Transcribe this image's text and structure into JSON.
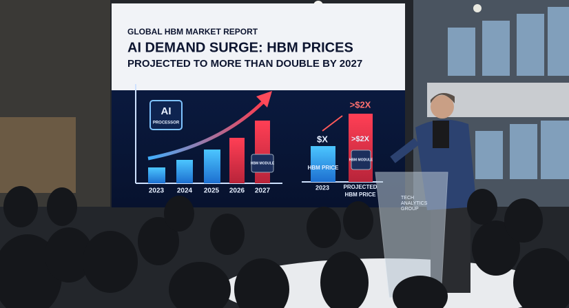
{
  "screen": {
    "kicker": "GLOBAL HBM MARKET REPORT",
    "headline": [
      "AI DEMAND SURGE: HBM PRICES",
      "PROJECTED TO MORE THAN DOUBLE BY 2027"
    ],
    "chip": {
      "title": "AI",
      "subtitle": "PROCESSOR"
    },
    "module_label": "HBM MODULE",
    "years": [
      "2023",
      "2024",
      "2025",
      "2026",
      "2027"
    ],
    "comparison": {
      "top_label": ">$2X",
      "base_price": "$X",
      "base_caption": "HBM PRICE",
      "projected_price": ">$2X",
      "base_year": "2023",
      "projected_caption": [
        "PROJECTED",
        "HBM PRICE"
      ]
    }
  },
  "podium": {
    "logo": [
      "TECH",
      "ANALYTICS",
      "GROUP"
    ]
  }
}
